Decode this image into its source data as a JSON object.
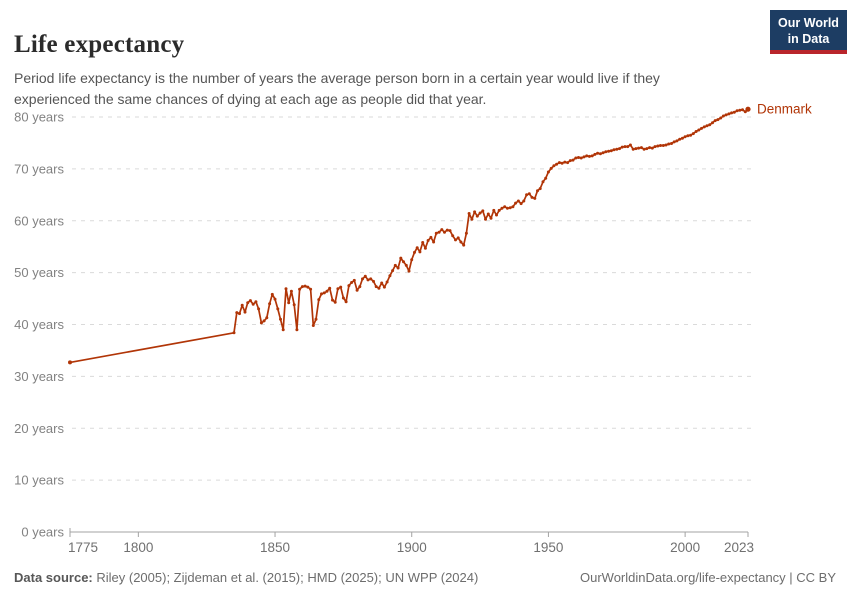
{
  "header": {
    "title": "Life expectancy",
    "subtitle": "Period life expectancy is the number of years the average person born in a certain year would live if they experienced the same chances of dying at each age as people did that year.",
    "logo": {
      "line1": "Our World",
      "line2": "in Data"
    }
  },
  "footer": {
    "source_label": "Data source:",
    "source_text": " Riley (2005); Zijdeman et al. (2015); HMD (2025); UN WPP (2024)",
    "right_text": "OurWorldinData.org/life-expectancy | CC BY"
  },
  "colors": {
    "line": "#b13507",
    "entity_label": "#b13507",
    "gridline": "#dadada",
    "axis": "#a3a3a3",
    "y_tick_text": "#828282",
    "x_tick_text": "#707070",
    "logo_bg": "#1d3d63",
    "logo_red": "#b9252b"
  },
  "chart_data": {
    "type": "line",
    "title": "Life expectancy",
    "xlabel": "",
    "ylabel": "",
    "xlim": [
      1775,
      2023
    ],
    "ylim": [
      0,
      85
    ],
    "grid": "horizontal-dashed",
    "legend_position": "end-of-line label",
    "x_ticks": [
      1775,
      1800,
      1850,
      1900,
      1950,
      2000,
      2023
    ],
    "y_ticks": [
      0,
      10,
      20,
      30,
      40,
      50,
      60,
      70,
      80
    ],
    "y_tick_suffix": " years",
    "series": [
      {
        "name": "Denmark",
        "points": [
          [
            1775,
            32.7
          ],
          [
            1835,
            38.4
          ],
          [
            1836,
            42.3
          ],
          [
            1837,
            42.1
          ],
          [
            1838,
            43.7
          ],
          [
            1839,
            42.4
          ],
          [
            1840,
            44.2
          ],
          [
            1841,
            44.6
          ],
          [
            1842,
            43.9
          ],
          [
            1843,
            44.4
          ],
          [
            1844,
            43.0
          ],
          [
            1845,
            40.3
          ],
          [
            1846,
            40.7
          ],
          [
            1847,
            41.3
          ],
          [
            1848,
            44.0
          ],
          [
            1849,
            45.8
          ],
          [
            1850,
            44.9
          ],
          [
            1851,
            43.0
          ],
          [
            1852,
            41.0
          ],
          [
            1853,
            39.0
          ],
          [
            1854,
            46.9
          ],
          [
            1855,
            44.2
          ],
          [
            1856,
            46.4
          ],
          [
            1857,
            43.8
          ],
          [
            1858,
            39.0
          ],
          [
            1859,
            46.8
          ],
          [
            1860,
            47.3
          ],
          [
            1861,
            47.4
          ],
          [
            1862,
            47.2
          ],
          [
            1863,
            46.8
          ],
          [
            1864,
            39.8
          ],
          [
            1865,
            41.0
          ],
          [
            1866,
            44.8
          ],
          [
            1867,
            45.9
          ],
          [
            1868,
            46.1
          ],
          [
            1869,
            46.4
          ],
          [
            1870,
            47.0
          ],
          [
            1871,
            44.7
          ],
          [
            1872,
            44.3
          ],
          [
            1873,
            46.9
          ],
          [
            1874,
            47.2
          ],
          [
            1875,
            45.1
          ],
          [
            1876,
            44.4
          ],
          [
            1877,
            47.5
          ],
          [
            1878,
            48.1
          ],
          [
            1879,
            48.5
          ],
          [
            1880,
            46.6
          ],
          [
            1881,
            47.3
          ],
          [
            1882,
            48.8
          ],
          [
            1883,
            49.3
          ],
          [
            1884,
            48.6
          ],
          [
            1885,
            48.8
          ],
          [
            1886,
            48.3
          ],
          [
            1887,
            47.3
          ],
          [
            1888,
            47.0
          ],
          [
            1889,
            48.0
          ],
          [
            1890,
            47.2
          ],
          [
            1891,
            48.2
          ],
          [
            1892,
            49.4
          ],
          [
            1893,
            50.4
          ],
          [
            1894,
            51.4
          ],
          [
            1895,
            50.9
          ],
          [
            1896,
            52.8
          ],
          [
            1897,
            52.1
          ],
          [
            1898,
            51.4
          ],
          [
            1899,
            50.3
          ],
          [
            1900,
            52.5
          ],
          [
            1901,
            53.9
          ],
          [
            1902,
            54.8
          ],
          [
            1903,
            54.0
          ],
          [
            1904,
            55.8
          ],
          [
            1905,
            54.7
          ],
          [
            1906,
            56.2
          ],
          [
            1907,
            56.8
          ],
          [
            1908,
            55.9
          ],
          [
            1909,
            57.6
          ],
          [
            1910,
            57.8
          ],
          [
            1911,
            58.3
          ],
          [
            1912,
            57.8
          ],
          [
            1913,
            58.2
          ],
          [
            1914,
            58.1
          ],
          [
            1915,
            57.1
          ],
          [
            1916,
            56.3
          ],
          [
            1917,
            56.7
          ],
          [
            1918,
            55.9
          ],
          [
            1919,
            55.3
          ],
          [
            1920,
            57.6
          ],
          [
            1921,
            61.4
          ],
          [
            1922,
            60.3
          ],
          [
            1923,
            61.7
          ],
          [
            1924,
            60.9
          ],
          [
            1925,
            61.5
          ],
          [
            1926,
            61.9
          ],
          [
            1927,
            60.3
          ],
          [
            1928,
            61.3
          ],
          [
            1929,
            60.5
          ],
          [
            1930,
            62.0
          ],
          [
            1931,
            61.1
          ],
          [
            1932,
            62.0
          ],
          [
            1933,
            62.4
          ],
          [
            1934,
            62.7
          ],
          [
            1935,
            62.4
          ],
          [
            1936,
            62.5
          ],
          [
            1937,
            62.7
          ],
          [
            1938,
            63.4
          ],
          [
            1939,
            63.8
          ],
          [
            1940,
            63.3
          ],
          [
            1941,
            63.8
          ],
          [
            1942,
            65.0
          ],
          [
            1943,
            65.2
          ],
          [
            1944,
            64.5
          ],
          [
            1945,
            64.3
          ],
          [
            1946,
            65.8
          ],
          [
            1947,
            66.2
          ],
          [
            1948,
            67.5
          ],
          [
            1949,
            68.2
          ],
          [
            1950,
            69.4
          ],
          [
            1951,
            70.1
          ],
          [
            1952,
            70.6
          ],
          [
            1953,
            70.9
          ],
          [
            1954,
            71.2
          ],
          [
            1955,
            71.1
          ],
          [
            1956,
            71.3
          ],
          [
            1957,
            71.2
          ],
          [
            1958,
            71.6
          ],
          [
            1959,
            71.7
          ],
          [
            1960,
            72.1
          ],
          [
            1961,
            72.2
          ],
          [
            1962,
            72.1
          ],
          [
            1963,
            72.3
          ],
          [
            1964,
            72.5
          ],
          [
            1965,
            72.4
          ],
          [
            1966,
            72.5
          ],
          [
            1967,
            72.8
          ],
          [
            1968,
            73.0
          ],
          [
            1969,
            72.9
          ],
          [
            1970,
            73.1
          ],
          [
            1971,
            73.3
          ],
          [
            1972,
            73.4
          ],
          [
            1973,
            73.5
          ],
          [
            1974,
            73.7
          ],
          [
            1975,
            73.8
          ],
          [
            1976,
            73.9
          ],
          [
            1977,
            74.2
          ],
          [
            1978,
            74.3
          ],
          [
            1979,
            74.3
          ],
          [
            1980,
            74.6
          ],
          [
            1981,
            73.8
          ],
          [
            1982,
            73.9
          ],
          [
            1983,
            74.0
          ],
          [
            1984,
            74.1
          ],
          [
            1985,
            73.8
          ],
          [
            1986,
            73.9
          ],
          [
            1987,
            74.1
          ],
          [
            1988,
            74.0
          ],
          [
            1989,
            74.3
          ],
          [
            1990,
            74.4
          ],
          [
            1991,
            74.5
          ],
          [
            1992,
            74.5
          ],
          [
            1993,
            74.6
          ],
          [
            1994,
            74.8
          ],
          [
            1995,
            74.9
          ],
          [
            1996,
            75.2
          ],
          [
            1997,
            75.4
          ],
          [
            1998,
            75.7
          ],
          [
            1999,
            75.9
          ],
          [
            2000,
            76.2
          ],
          [
            2001,
            76.4
          ],
          [
            2002,
            76.5
          ],
          [
            2003,
            76.8
          ],
          [
            2004,
            77.2
          ],
          [
            2005,
            77.5
          ],
          [
            2006,
            77.8
          ],
          [
            2007,
            78.1
          ],
          [
            2008,
            78.3
          ],
          [
            2009,
            78.5
          ],
          [
            2010,
            78.9
          ],
          [
            2011,
            79.3
          ],
          [
            2012,
            79.5
          ],
          [
            2013,
            79.8
          ],
          [
            2014,
            80.2
          ],
          [
            2015,
            80.4
          ],
          [
            2016,
            80.6
          ],
          [
            2017,
            80.8
          ],
          [
            2018,
            80.9
          ],
          [
            2019,
            81.2
          ],
          [
            2020,
            81.3
          ],
          [
            2021,
            81.4
          ],
          [
            2022,
            81.0
          ],
          [
            2023,
            81.5
          ]
        ]
      }
    ]
  }
}
